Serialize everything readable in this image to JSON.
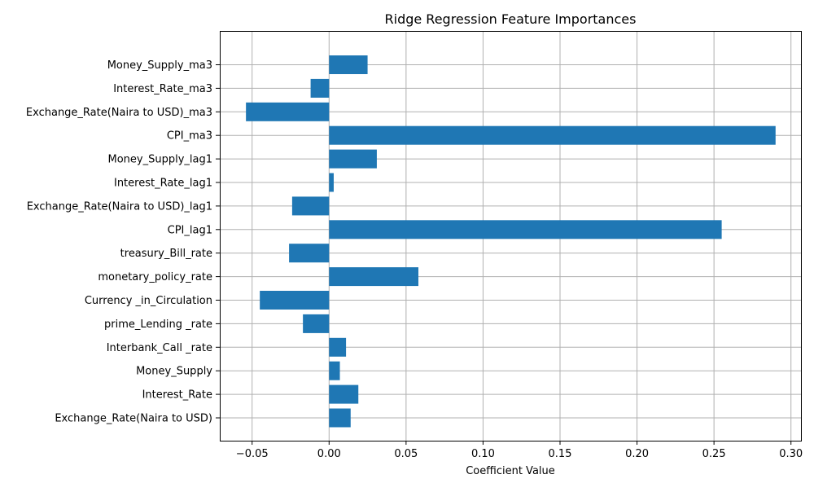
{
  "chart_data": {
    "type": "bar",
    "orientation": "horizontal",
    "title": "Ridge Regression Feature Importances",
    "xlabel": "Coefficient Value",
    "ylabel": "",
    "xlim": [
      -0.071,
      0.3065
    ],
    "xticks": [
      -0.05,
      0.0,
      0.05,
      0.1,
      0.15,
      0.2,
      0.25,
      0.3
    ],
    "xtick_labels": [
      "−0.05",
      "0.00",
      "0.05",
      "0.10",
      "0.15",
      "0.20",
      "0.25",
      "0.30"
    ],
    "grid": true,
    "bar_color": "#1f77b4",
    "categories": [
      "Exchange_Rate(Naira to USD)",
      "Interest_Rate",
      "Money_Supply",
      "Interbank_Call _rate",
      "prime_Lending _rate",
      "Currency _in_Circulation",
      "monetary_policy_rate",
      "treasury_Bill_rate",
      "CPI_lag1",
      "Exchange_Rate(Naira to USD)_lag1",
      "Interest_Rate_lag1",
      "Money_Supply_lag1",
      "CPI_ma3",
      "Exchange_Rate(Naira to USD)_ma3",
      "Interest_Rate_ma3",
      "Money_Supply_ma3"
    ],
    "values": [
      0.014,
      0.019,
      0.007,
      0.011,
      -0.017,
      -0.045,
      0.058,
      -0.026,
      0.255,
      -0.024,
      0.003,
      0.031,
      0.29,
      -0.054,
      -0.012,
      0.025
    ]
  }
}
